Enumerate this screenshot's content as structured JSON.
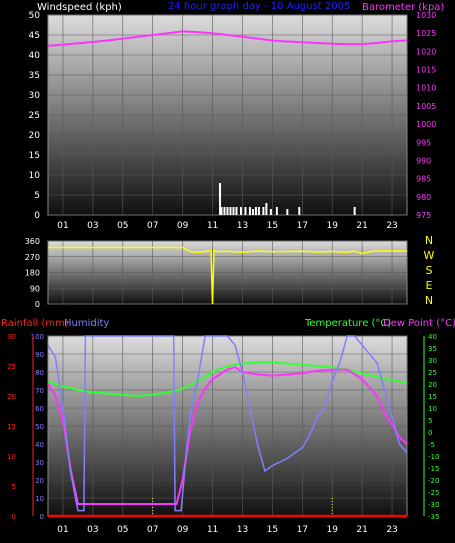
{
  "header": {
    "title": "24 hour graph day - 10 August 2005",
    "wind_label": "Windspeed (kph)",
    "baro_label": "Barometer (kpa)"
  },
  "lower_header": {
    "rain_label": "Rainfall (mm)",
    "hum_label": "Humidity",
    "temp_label": "Temperature (°C)",
    "dew_label": "Dew Point (°C)"
  },
  "colors": {
    "background": "#000000",
    "plot_top": "#dcdcdc",
    "plot_bottom": "#101010",
    "grid": "#5a5a5a",
    "barometer": "#ff33ff",
    "wind_bars": "#ffffff",
    "direction": "#ffff00",
    "rain_axis": "#ff2020",
    "humidity": "#8080ff",
    "temperature": "#33ff33",
    "dewpoint": "#ff33ff",
    "rain_line": "#ff0000",
    "dotted_marker": "#ffff00"
  },
  "x_ticks": [
    "01",
    "03",
    "05",
    "07",
    "09",
    "11",
    "13",
    "15",
    "17",
    "19",
    "21",
    "23"
  ],
  "chart_data": [
    {
      "type": "bar",
      "name": "windspeed-barometer",
      "xlim": [
        0,
        24
      ],
      "left_axis": {
        "label": "Windspeed (kph)",
        "ylim": [
          0,
          50
        ],
        "ticks": [
          "0",
          "5",
          "10",
          "15",
          "20",
          "25",
          "30",
          "35",
          "40",
          "45",
          "50"
        ]
      },
      "right_axis": {
        "label": "Barometer (kpa)",
        "ylim": [
          975,
          1030
        ],
        "ticks": [
          "975",
          "980",
          "985",
          "990",
          "995",
          "1000",
          "1005",
          "1010",
          "1015",
          "1020",
          "1025",
          "1030"
        ]
      },
      "series": [
        {
          "name": "Barometer",
          "axis": "right",
          "x": [
            0,
            2,
            4,
            6,
            8,
            9,
            10,
            11,
            12,
            13,
            14,
            15,
            16,
            17,
            18,
            19,
            20,
            21,
            22,
            23,
            24
          ],
          "y": [
            1021.5,
            1022.2,
            1023,
            1024,
            1025,
            1025.5,
            1025.3,
            1025,
            1024.5,
            1024,
            1023.5,
            1023,
            1022.7,
            1022.5,
            1022.3,
            1022.1,
            1022,
            1022,
            1022.3,
            1022.8,
            1023
          ]
        },
        {
          "name": "Windspeed",
          "axis": "left",
          "x": [
            11.5,
            11.6,
            11.8,
            12.0,
            12.2,
            12.4,
            12.6,
            12.9,
            13.2,
            13.5,
            13.7,
            13.9,
            14.1,
            14.4,
            14.6,
            14.9,
            15.3,
            16.0,
            16.8,
            20.5
          ],
          "y": [
            8,
            2,
            2,
            2,
            2,
            2,
            2,
            2,
            2,
            2,
            1.5,
            2,
            2,
            2,
            3,
            1.5,
            2,
            1.5,
            2,
            2
          ]
        }
      ]
    },
    {
      "type": "line",
      "name": "wind-direction",
      "xlim": [
        0,
        24
      ],
      "left_axis": {
        "ylim": [
          0,
          360
        ],
        "ticks": [
          "0",
          "90",
          "180",
          "270",
          "360"
        ]
      },
      "right_labels": [
        "N",
        "W",
        "S",
        "E",
        "N"
      ],
      "series": [
        {
          "name": "Direction",
          "x": [
            0,
            2,
            4,
            6,
            8,
            9,
            9.5,
            10,
            10.5,
            10.9,
            11,
            11.1,
            11.5,
            12,
            13,
            14,
            15,
            16,
            17,
            18,
            19,
            20,
            20.5,
            21,
            21.5,
            22,
            23,
            24
          ],
          "y": [
            323,
            323,
            323,
            323,
            323,
            323,
            300,
            295,
            300,
            305,
            0,
            305,
            298,
            302,
            296,
            303,
            298,
            300,
            302,
            297,
            300,
            296,
            303,
            288,
            298,
            303,
            303,
            303
          ]
        }
      ]
    },
    {
      "type": "line",
      "name": "rain-humidity-temp-dew",
      "xlim": [
        0,
        24
      ],
      "rain_axis": {
        "label": "Rainfall (mm)",
        "ylim": [
          0,
          30
        ],
        "ticks": [
          "0",
          "5",
          "10",
          "15",
          "20",
          "25",
          "30"
        ]
      },
      "humidity_axis": {
        "label": "Humidity",
        "ylim": [
          0,
          100
        ],
        "ticks": [
          "0",
          "10",
          "20",
          "30",
          "40",
          "50",
          "60",
          "70",
          "80",
          "90",
          "100"
        ]
      },
      "temp_axis": {
        "label": "Temperature (°C)",
        "ylim": [
          -35,
          40
        ],
        "ticks": [
          "-35",
          "-30",
          "-25",
          "-20",
          "-15",
          "-10",
          "-5",
          "0",
          "5",
          "10",
          "15",
          "20",
          "25",
          "30",
          "35",
          "40"
        ]
      },
      "series": [
        {
          "name": "Humidity",
          "axis": "humidity",
          "x": [
            0,
            0.5,
            1,
            1.5,
            2,
            2.4,
            2.5,
            3,
            6,
            8,
            8.4,
            8.5,
            8.9,
            9.3,
            9.6,
            10,
            10.5,
            11,
            11.5,
            12,
            12.5,
            13,
            13.5,
            14,
            14.5,
            15,
            15.5,
            16,
            16.5,
            17,
            17.5,
            18,
            18.5,
            19,
            19.5,
            20,
            20.5,
            21,
            21.5,
            22,
            22.5,
            23,
            23.5,
            24
          ],
          "y": [
            95,
            88,
            60,
            25,
            3,
            3,
            100,
            100,
            100,
            100,
            100,
            3,
            3,
            40,
            60,
            75,
            100,
            100,
            100,
            100,
            95,
            80,
            60,
            40,
            25,
            28,
            30,
            32,
            35,
            38,
            45,
            55,
            60,
            75,
            85,
            100,
            100,
            95,
            90,
            85,
            70,
            55,
            40,
            35
          ]
        },
        {
          "name": "Temperature",
          "axis": "temp",
          "x": [
            0,
            1,
            2,
            3,
            4,
            5,
            6,
            7,
            8,
            9,
            10,
            11,
            12,
            13,
            14,
            15,
            16,
            17,
            18,
            19,
            20,
            21,
            22,
            23,
            24
          ],
          "y": [
            21,
            19,
            17.5,
            16.5,
            16,
            15.5,
            15,
            15.5,
            16.5,
            18,
            21,
            25,
            27.5,
            28.5,
            29,
            29,
            28.5,
            28,
            27.5,
            27,
            26,
            24.5,
            23,
            21.5,
            20.5
          ]
        },
        {
          "name": "Dew Point",
          "axis": "temp",
          "x": [
            0,
            0.5,
            1,
            1.5,
            2,
            2.2,
            8.4,
            8.6,
            9,
            9.5,
            10,
            10.5,
            11,
            11.5,
            12,
            12.5,
            13,
            14,
            15,
            16,
            17,
            18,
            19,
            20,
            21,
            22,
            22.5,
            23,
            23.5,
            24
          ],
          "y": [
            20,
            15,
            5,
            -15,
            -30,
            -30,
            -30,
            -30,
            -20,
            0,
            12,
            18,
            22,
            24,
            26,
            27,
            25,
            24,
            23.5,
            24,
            24.5,
            25.5,
            26,
            26,
            22,
            15,
            8,
            3,
            -2,
            -5
          ]
        },
        {
          "name": "Rainfall",
          "axis": "rain",
          "x": [
            0,
            24
          ],
          "y": [
            0,
            0
          ]
        }
      ],
      "markers_x": [
        7,
        19
      ]
    }
  ]
}
